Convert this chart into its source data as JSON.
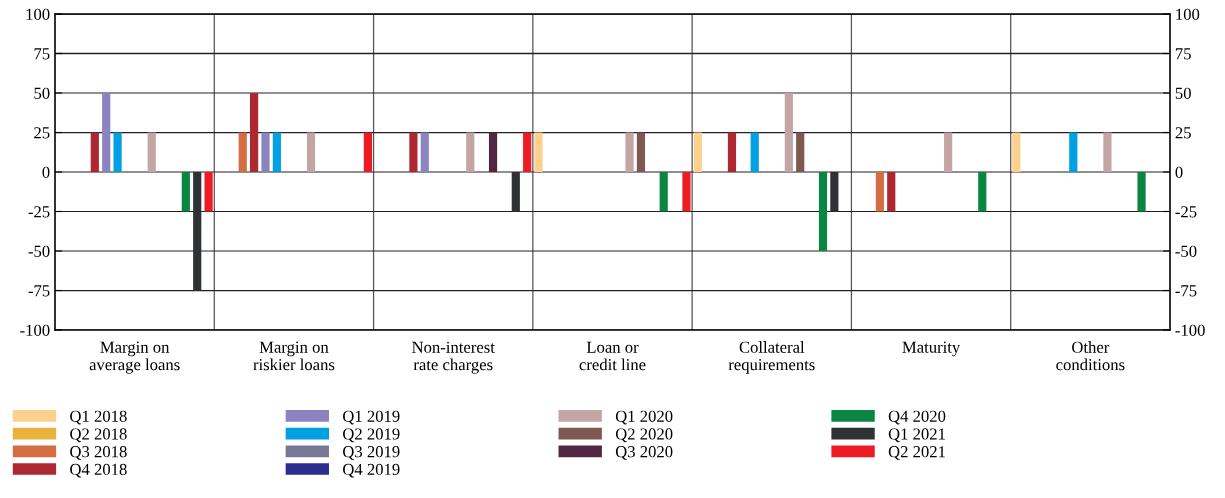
{
  "chart_data": {
    "type": "bar",
    "categories": [
      "Margin on\naverage loans",
      "Margin on\nriskier loans",
      "Non-interest\nrate charges",
      "Loan or\ncredit line",
      "Collateral\nrequirements",
      "Maturity",
      "Other\nconditions"
    ],
    "series": [
      {
        "name": "Q1 2018",
        "color": "#fdd08e",
        "values": [
          0,
          0,
          0,
          25,
          25,
          0,
          25
        ]
      },
      {
        "name": "Q2 2018",
        "color": "#e9b23c",
        "values": [
          0,
          0,
          0,
          0,
          0,
          0,
          0
        ]
      },
      {
        "name": "Q3 2018",
        "color": "#d46d42",
        "values": [
          0,
          25,
          0,
          0,
          0,
          -25,
          0
        ]
      },
      {
        "name": "Q4 2018",
        "color": "#ae2832",
        "values": [
          25,
          50,
          25,
          0,
          25,
          -25,
          0
        ]
      },
      {
        "name": "Q1 2019",
        "color": "#8b84c0",
        "values": [
          50,
          25,
          25,
          0,
          0,
          0,
          0
        ]
      },
      {
        "name": "Q2 2019",
        "color": "#00a0e3",
        "values": [
          25,
          25,
          0,
          0,
          25,
          0,
          25
        ]
      },
      {
        "name": "Q3 2019",
        "color": "#767896",
        "values": [
          0,
          0,
          0,
          0,
          0,
          0,
          0
        ]
      },
      {
        "name": "Q4 2019",
        "color": "#2d2d8f",
        "values": [
          0,
          0,
          0,
          0,
          0,
          0,
          0
        ]
      },
      {
        "name": "Q1 2020",
        "color": "#c4a5a6",
        "values": [
          25,
          25,
          25,
          25,
          50,
          25,
          25
        ]
      },
      {
        "name": "Q2 2020",
        "color": "#7f5951",
        "values": [
          0,
          0,
          0,
          25,
          25,
          0,
          0
        ]
      },
      {
        "name": "Q3 2020",
        "color": "#512643",
        "values": [
          0,
          0,
          25,
          0,
          0,
          0,
          0
        ]
      },
      {
        "name": "Q4 2020",
        "color": "#0b8542",
        "values": [
          -25,
          0,
          0,
          -25,
          -50,
          -25,
          -25
        ]
      },
      {
        "name": "Q1 2021",
        "color": "#303134",
        "values": [
          -75,
          0,
          -25,
          0,
          -25,
          0,
          0
        ]
      },
      {
        "name": "Q2 2021",
        "color": "#ed1c24",
        "values": [
          -25,
          25,
          25,
          -25,
          0,
          0,
          0
        ]
      }
    ],
    "ylim": [
      -100,
      100
    ],
    "yticks": [
      -100,
      -75,
      -50,
      -25,
      0,
      25,
      50,
      75,
      100
    ],
    "y2lim": [
      -100,
      100
    ],
    "y2ticks": [
      -100,
      -75,
      -50,
      -25,
      0,
      25,
      50,
      75,
      100
    ],
    "grid": true,
    "legend": "bottom"
  }
}
